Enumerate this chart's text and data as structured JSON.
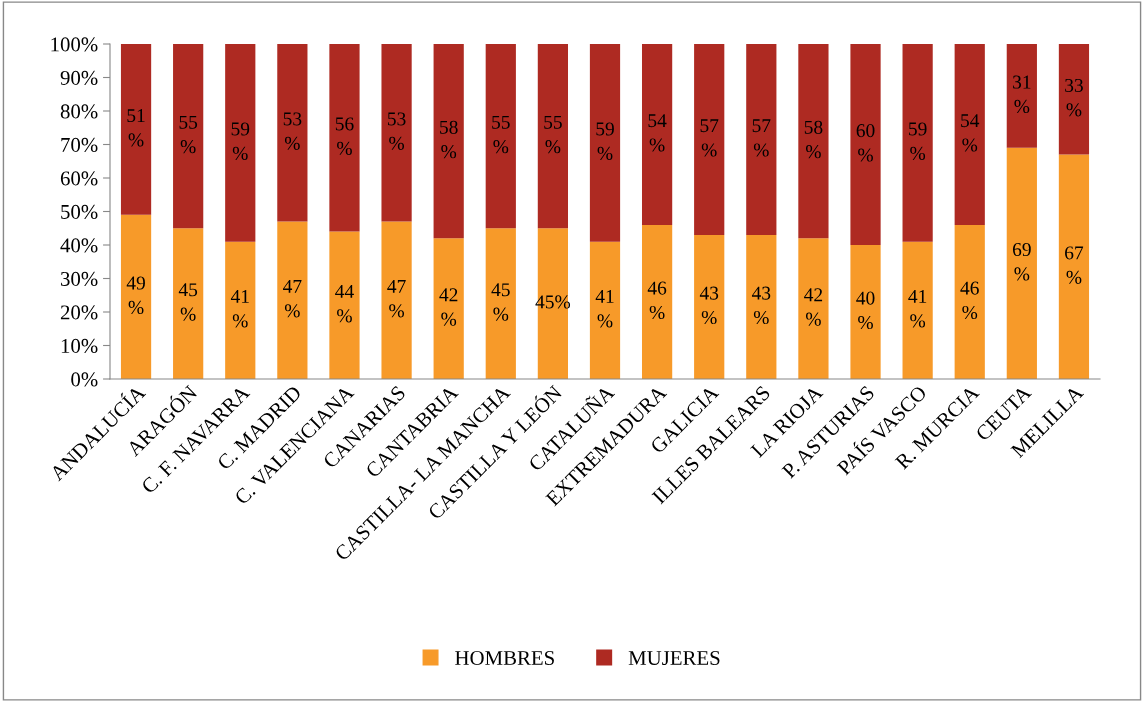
{
  "chart_data": {
    "type": "bar",
    "stacked": true,
    "categories": [
      "ANDALUCÍA",
      "ARAGÓN",
      "C. F. NAVARRA",
      "C. MADRID",
      "C. VALENCIANA",
      "CANARIAS",
      "CANTABRIA",
      "CASTILLA- LA MANCHA",
      "CASTILLA Y LEÓN",
      "CATALUÑA",
      "EXTREMADURA",
      "GALICIA",
      "ILLES BALEARS",
      "LA RIOJA",
      "P. ASTURIAS",
      "PAÍS VASCO",
      "R. MURCIA",
      "CEUTA",
      "MELILLA"
    ],
    "series": [
      {
        "name": "HOMBRES",
        "color": "#f79a29",
        "values": [
          49,
          45,
          41,
          47,
          44,
          47,
          42,
          45,
          45,
          41,
          46,
          43,
          43,
          42,
          40,
          41,
          46,
          69,
          67
        ],
        "value_labels": [
          "49\n%",
          "45\n%",
          "41\n%",
          "47\n%",
          "44\n%",
          "47\n%",
          "42\n%",
          "45\n%",
          "45%",
          "41\n%",
          "46\n%",
          "43\n%",
          "43\n%",
          "42\n%",
          "40\n%",
          "41\n%",
          "46\n%",
          "69\n%",
          "67\n%"
        ]
      },
      {
        "name": "MUJERES",
        "color": "#ae2a22",
        "values": [
          51,
          55,
          59,
          53,
          56,
          53,
          58,
          55,
          55,
          59,
          54,
          57,
          57,
          58,
          60,
          59,
          54,
          31,
          33
        ],
        "value_labels": [
          "51\n%",
          "55\n%",
          "59\n%",
          "53\n%",
          "56\n%",
          "53\n%",
          "58\n%",
          "55\n%",
          "55\n%",
          "59\n%",
          "54\n%",
          "57\n%",
          "57\n%",
          "58\n%",
          "60\n%",
          "59\n%",
          "54\n%",
          "31\n%",
          "33\n%"
        ]
      }
    ],
    "ylim": [
      0,
      100
    ],
    "yticks": [
      {
        "value": 0,
        "label": "0%"
      },
      {
        "value": 10,
        "label": "10%"
      },
      {
        "value": 20,
        "label": "20%"
      },
      {
        "value": 30,
        "label": "30%"
      },
      {
        "value": 40,
        "label": "40%"
      },
      {
        "value": 50,
        "label": "50%"
      },
      {
        "value": 60,
        "label": "60%"
      },
      {
        "value": 70,
        "label": "70%"
      },
      {
        "value": 80,
        "label": "80%"
      },
      {
        "value": 90,
        "label": "90%"
      },
      {
        "value": 100,
        "label": "100%"
      }
    ],
    "legend": "bottom"
  }
}
